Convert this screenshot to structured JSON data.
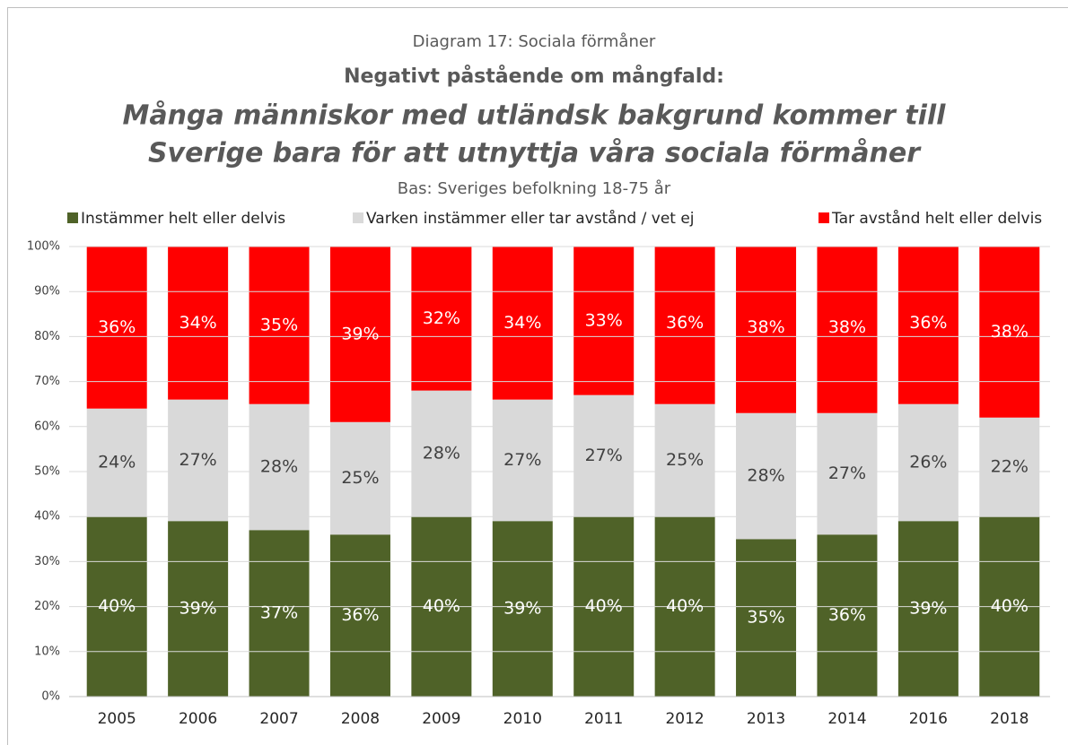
{
  "chart_data": {
    "type": "stacked_bar",
    "title": "Diagram 17: Sociala förmåner",
    "subtitle": "Negativt påstående om mångfald:",
    "statement": [
      "Många människor med utländsk bakgrund kommer till",
      "Sverige bara för att utnyttja våra sociala förmåner"
    ],
    "note": "Bas: Sveriges befolkning 18-75 år",
    "categories": [
      "2005",
      "2006",
      "2007",
      "2008",
      "2009",
      "2010",
      "2011",
      "2012",
      "2013",
      "2014",
      "2016",
      "2018"
    ],
    "series": [
      {
        "name": "Instämmer helt eller delvis",
        "color": "#4f6228",
        "label_color": "#ffffff",
        "values": [
          40,
          39,
          37,
          36,
          40,
          39,
          40,
          40,
          35,
          36,
          39,
          40
        ],
        "value_labels": [
          "40%",
          "39%",
          "37%",
          "36%",
          "40%",
          "39%",
          "40%",
          "40%",
          "35%",
          "36%",
          "39%",
          "40%"
        ]
      },
      {
        "name": "Varken instämmer eller tar avstånd / vet ej",
        "color": "#d9d9d9",
        "label_color": "#404040",
        "values": [
          24,
          27,
          28,
          25,
          28,
          27,
          27,
          25,
          28,
          27,
          26,
          22
        ],
        "value_labels": [
          "24%",
          "27%",
          "28%",
          "25%",
          "28%",
          "27%",
          "27%",
          "25%",
          "28%",
          "27%",
          "26%",
          "22%"
        ]
      },
      {
        "name": "Tar avstånd helt eller delvis",
        "color": "#ff0000",
        "label_color": "#ffffff",
        "values": [
          36,
          34,
          35,
          39,
          32,
          34,
          33,
          36,
          38,
          38,
          36,
          38
        ],
        "value_labels": [
          "36%",
          "34%",
          "35%",
          "39%",
          "32%",
          "34%",
          "33%",
          "36%",
          "38%",
          "38%",
          "36%",
          "38%"
        ]
      }
    ],
    "ylim": [
      0,
      100
    ],
    "yticks": [
      {
        "value": 0,
        "label": "0%"
      },
      {
        "value": 10,
        "label": "10%"
      },
      {
        "value": 20,
        "label": "20%"
      },
      {
        "value": 30,
        "label": "30%"
      },
      {
        "value": 40,
        "label": "40%"
      },
      {
        "value": 50,
        "label": "50%"
      },
      {
        "value": 60,
        "label": "60%"
      },
      {
        "value": 70,
        "label": "70%"
      },
      {
        "value": 80,
        "label": "80%"
      },
      {
        "value": 90,
        "label": "90%"
      },
      {
        "value": 100,
        "label": "100%"
      }
    ],
    "grid": true,
    "legend": "top"
  }
}
